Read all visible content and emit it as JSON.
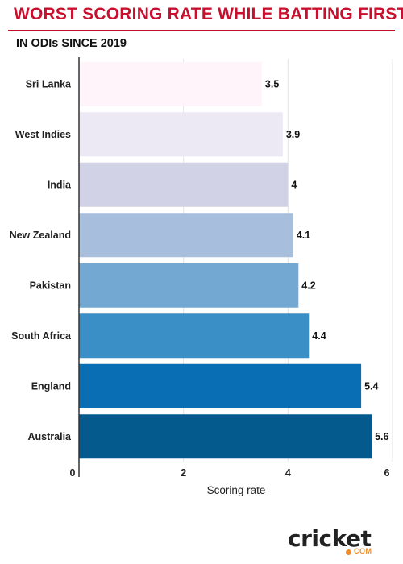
{
  "title": "WORST SCORING RATE WHILE BATTING FIRST",
  "subtitle": "IN ODIs SINCE 2019",
  "logo": {
    "main": "cricket",
    "sub": "COM"
  },
  "chart_data": {
    "type": "bar",
    "orientation": "horizontal",
    "categories": [
      "Sri Lanka",
      "West Indies",
      "India",
      "New Zealand",
      "Pakistan",
      "South Africa",
      "England",
      "Australia"
    ],
    "values": [
      3.5,
      3.9,
      4,
      4.1,
      4.2,
      4.4,
      5.4,
      5.6
    ],
    "value_labels": [
      "3.5",
      "3.9",
      "4",
      "4.1",
      "4.2",
      "4.4",
      "5.4",
      "5.6"
    ],
    "bar_colors": [
      "#fff4fa",
      "#ece8f4",
      "#d2d2e6",
      "#a8bedd",
      "#73a8d2",
      "#3b8fc7",
      "#0a6eb4",
      "#045a8d"
    ],
    "xlabel": "Scoring rate",
    "ylabel": "",
    "xlim": [
      0,
      6
    ],
    "xticks": [
      0,
      2,
      4,
      6
    ],
    "xtick_labels": [
      "0",
      "2",
      "4",
      "6"
    ],
    "grid": true
  }
}
